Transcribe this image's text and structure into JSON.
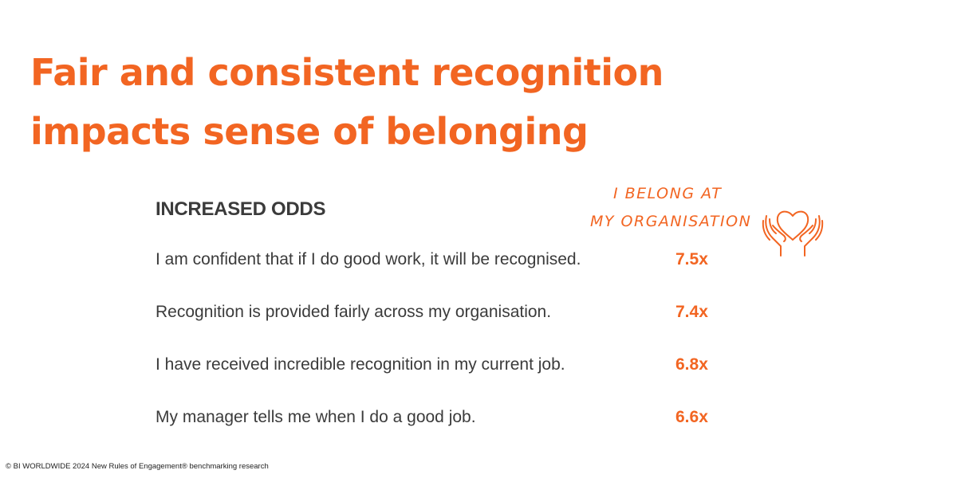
{
  "title": {
    "line1": "Fair and consistent recognition",
    "line2": "impacts sense of belonging"
  },
  "subheading": "INCREASED ODDS",
  "badge": {
    "line1": "I BELONG AT",
    "line2": "MY ORGANISATION",
    "icon": "hands-holding-heart-icon"
  },
  "rows": [
    {
      "label": "I am confident that if I do good work, it will be recognised.",
      "value": "7.5x"
    },
    {
      "label": "Recognition is provided fairly across my organisation.",
      "value": "7.4x"
    },
    {
      "label": "I have received incredible recognition in my current job.",
      "value": "6.8x"
    },
    {
      "label": "My manager tells me when I do a good job.",
      "value": "6.6x"
    }
  ],
  "footer": "© BI WORLDWIDE 2024 New Rules of Engagement® benchmarking research",
  "colors": {
    "accent": "#f26522",
    "text": "#3b3b3b"
  }
}
